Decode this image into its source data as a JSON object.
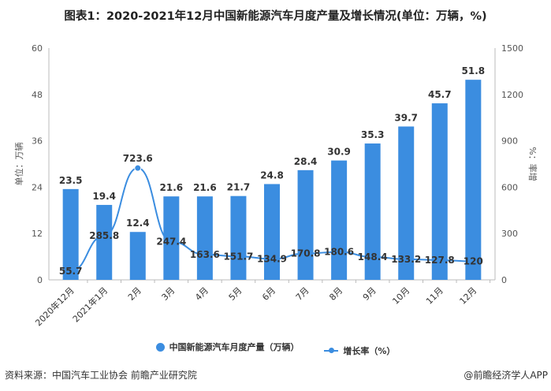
{
  "title": "图表1：2020-2021年12月中国新能源汽车月度产量及增长情况(单位：万辆，%)",
  "source": "资料来源：中国汽车工业协会 前瞻产业研究院",
  "credit": "@前瞻经济学人APP",
  "chart_data": {
    "type": "bar+line",
    "categories": [
      "2020年12月",
      "2021年1月",
      "2月",
      "3月",
      "4月",
      "5月",
      "6月",
      "7月",
      "8月",
      "9月",
      "10月",
      "11月",
      "12月"
    ],
    "series": [
      {
        "name": "中国新能源汽车月度产量（万辆）",
        "type": "bar",
        "axis": "left",
        "color": "#3b8de0",
        "values": [
          23.5,
          19.4,
          12.4,
          21.6,
          21.6,
          21.7,
          24.8,
          28.4,
          30.9,
          35.3,
          39.7,
          45.7,
          51.8
        ]
      },
      {
        "name": "增长率（%）",
        "type": "line",
        "axis": "right",
        "color": "#3b8de0",
        "values": [
          55.7,
          285.8,
          723.6,
          247.4,
          163.6,
          151.7,
          134.9,
          170.8,
          180.6,
          148.4,
          133.2,
          127.8,
          120
        ]
      }
    ],
    "ylabel_left": "单位：万辆",
    "ylabel_right": "%：率增",
    "ylim_left": [
      0,
      60
    ],
    "yticks_left": [
      0,
      12,
      24,
      36,
      48,
      60
    ],
    "ylim_right": [
      0,
      1500
    ],
    "yticks_right": [
      0,
      300,
      600,
      900,
      1200,
      1500
    ],
    "legend": "bottom",
    "grid": false
  }
}
